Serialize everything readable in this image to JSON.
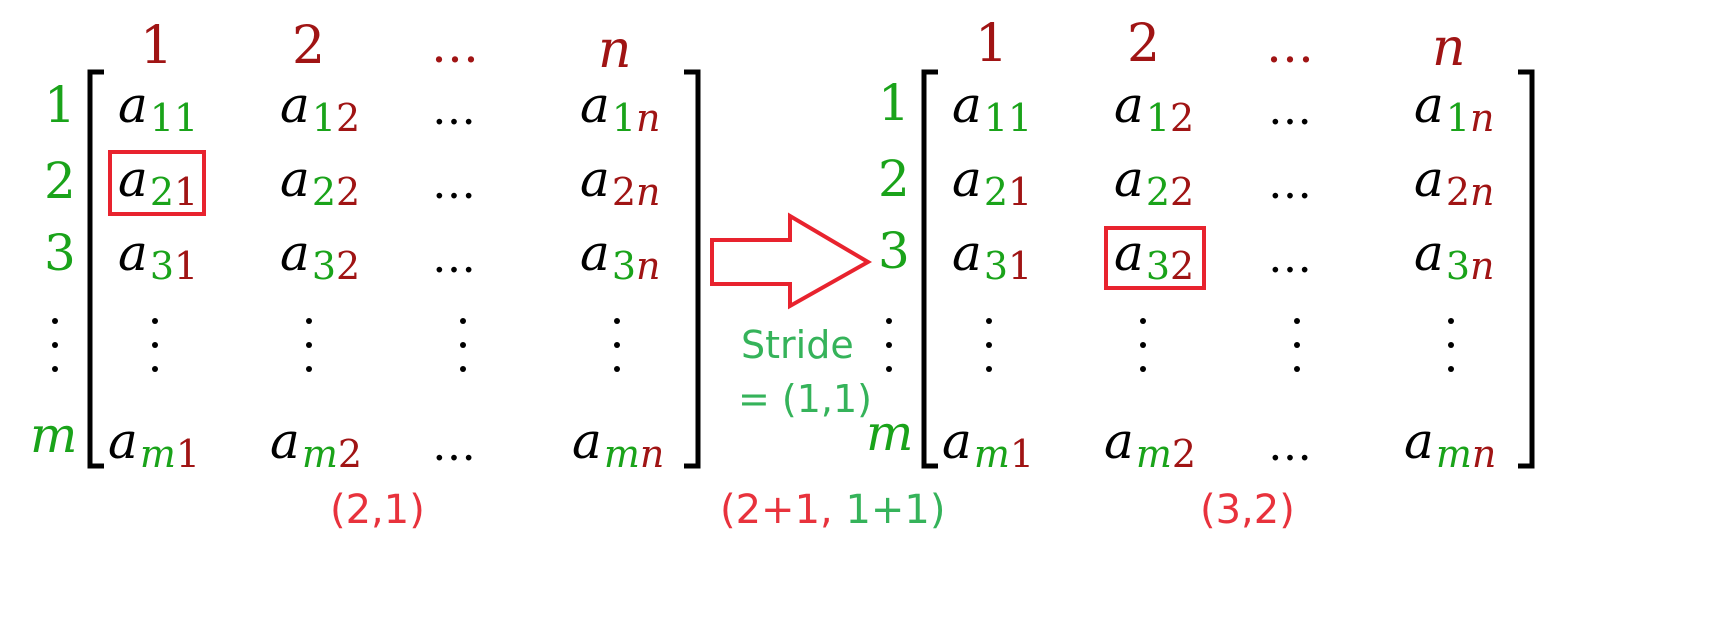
{
  "left_matrix": {
    "col_labels": [
      "1",
      "2",
      "…",
      "n"
    ],
    "row_labels": [
      "1",
      "2",
      "3",
      "⋮",
      "m"
    ],
    "cells": [
      [
        {
          "base": "a",
          "sub": [
            "1",
            "1"
          ]
        },
        {
          "base": "a",
          "sub": [
            "1",
            "2"
          ]
        },
        {
          "dots": "…"
        },
        {
          "base": "a",
          "sub": [
            "1",
            "n"
          ]
        }
      ],
      [
        {
          "base": "a",
          "sub": [
            "2",
            "1"
          ]
        },
        {
          "base": "a",
          "sub": [
            "2",
            "2"
          ]
        },
        {
          "dots": "…"
        },
        {
          "base": "a",
          "sub": [
            "2",
            "n"
          ]
        }
      ],
      [
        {
          "base": "a",
          "sub": [
            "3",
            "1"
          ]
        },
        {
          "base": "a",
          "sub": [
            "3",
            "2"
          ]
        },
        {
          "dots": "…"
        },
        {
          "base": "a",
          "sub": [
            "3",
            "n"
          ]
        }
      ],
      [
        {
          "vdots": true
        },
        {
          "vdots": true
        },
        {
          "vdots": true
        },
        {
          "vdots": true
        }
      ],
      [
        {
          "base": "a",
          "sub": [
            "m",
            "1"
          ]
        },
        {
          "base": "a",
          "sub": [
            "m",
            "2"
          ]
        },
        {
          "dots": "…"
        },
        {
          "base": "a",
          "sub": [
            "m",
            "n"
          ]
        }
      ]
    ],
    "highlight": {
      "row": 2,
      "col": 1
    },
    "caption": "(2,1)"
  },
  "right_matrix": {
    "col_labels": [
      "1",
      "2",
      "…",
      "n"
    ],
    "row_labels": [
      "1",
      "2",
      "3",
      "⋮",
      "m"
    ],
    "cells": [
      [
        {
          "base": "a",
          "sub": [
            "1",
            "1"
          ]
        },
        {
          "base": "a",
          "sub": [
            "1",
            "2"
          ]
        },
        {
          "dots": "…"
        },
        {
          "base": "a",
          "sub": [
            "1",
            "n"
          ]
        }
      ],
      [
        {
          "base": "a",
          "sub": [
            "2",
            "1"
          ]
        },
        {
          "base": "a",
          "sub": [
            "2",
            "2"
          ]
        },
        {
          "dots": "…"
        },
        {
          "base": "a",
          "sub": [
            "2",
            "n"
          ]
        }
      ],
      [
        {
          "base": "a",
          "sub": [
            "3",
            "1"
          ]
        },
        {
          "base": "a",
          "sub": [
            "3",
            "2"
          ]
        },
        {
          "dots": "…"
        },
        {
          "base": "a",
          "sub": [
            "3",
            "n"
          ]
        }
      ],
      [
        {
          "vdots": true
        },
        {
          "vdots": true
        },
        {
          "vdots": true
        },
        {
          "vdots": true
        }
      ],
      [
        {
          "base": "a",
          "sub": [
            "m",
            "1"
          ]
        },
        {
          "base": "a",
          "sub": [
            "m",
            "2"
          ]
        },
        {
          "dots": "…"
        },
        {
          "base": "a",
          "sub": [
            "m",
            "n"
          ]
        }
      ]
    ],
    "highlight": {
      "row": 3,
      "col": 2
    },
    "caption": "(3,2)"
  },
  "transition": {
    "stride_line1": "Stride",
    "stride_line2": "= (1,1)",
    "formula_open": "(2+1, ",
    "formula_rest": "1+1)"
  },
  "colors": {
    "row_index": "#1aa31a",
    "col_index": "#a01414",
    "highlight_box": "#e8232e",
    "stride_text": "#35b35a",
    "caption_text": "#e8323c"
  }
}
